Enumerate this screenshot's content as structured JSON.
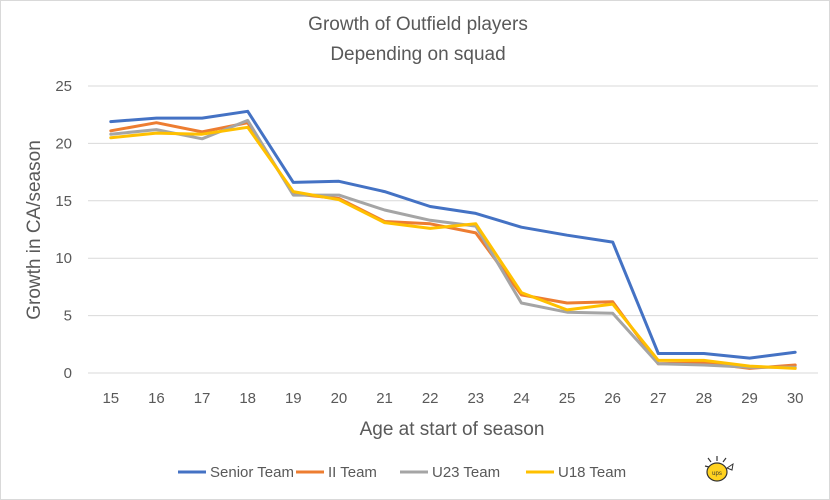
{
  "chart_data": {
    "type": "line",
    "title": "Growth of Outfield players",
    "subtitle": "Depending on squad",
    "xlabel": "Age at start of season",
    "ylabel": "Growth in CA/season",
    "categories": [
      "15",
      "16",
      "17",
      "18",
      "19",
      "20",
      "21",
      "22",
      "23",
      "24",
      "25",
      "26",
      "27",
      "28",
      "29",
      "30"
    ],
    "ylim": [
      0,
      25
    ],
    "yticks": [
      0,
      5,
      10,
      15,
      20,
      25
    ],
    "grid": "horizontal",
    "legend_position": "bottom",
    "series": [
      {
        "name": "Senior Team",
        "color": "#4472C4",
        "values": [
          21.9,
          22.2,
          22.2,
          22.8,
          16.6,
          16.7,
          15.8,
          14.5,
          13.9,
          12.7,
          12.0,
          11.4,
          1.7,
          1.7,
          1.3,
          1.8
        ]
      },
      {
        "name": "II Team",
        "color": "#ED7D31",
        "values": [
          21.1,
          21.8,
          21.0,
          21.8,
          15.6,
          15.2,
          13.2,
          13.0,
          12.2,
          6.8,
          6.1,
          6.2,
          0.8,
          0.9,
          0.4,
          0.7
        ]
      },
      {
        "name": "U23 Team",
        "color": "#A5A5A5",
        "values": [
          20.8,
          21.2,
          20.4,
          22.0,
          15.5,
          15.5,
          14.2,
          13.3,
          12.8,
          6.1,
          5.3,
          5.2,
          0.8,
          0.7,
          0.5,
          0.5
        ]
      },
      {
        "name": "U18 Team",
        "color": "#FFC000",
        "values": [
          20.5,
          20.9,
          20.8,
          21.4,
          15.8,
          15.1,
          13.1,
          12.6,
          13.0,
          7.0,
          5.5,
          6.0,
          1.1,
          1.1,
          0.6,
          0.4
        ]
      }
    ]
  },
  "logo": {
    "text": "ups",
    "name": "small-cartoon-logo"
  }
}
